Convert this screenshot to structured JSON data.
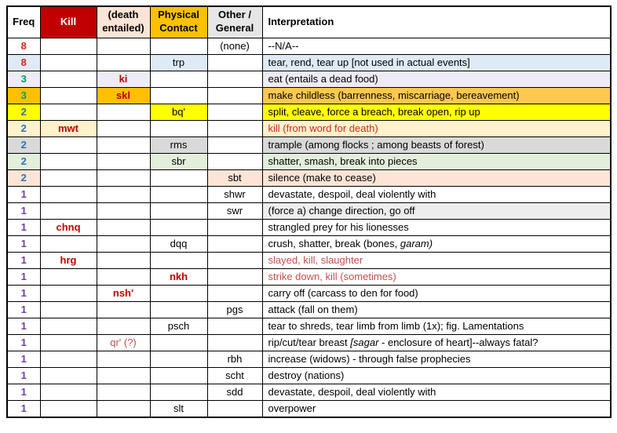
{
  "palette": {
    "header_kill_bg": "#C00000",
    "header_kill_text": "#FFFFFF",
    "header_death_bg": "#FCE4D6",
    "header_phys_bg": "#FFC000",
    "header_other_bg": "#E7E6E6",
    "freq_red": "#D6281A",
    "freq_green": "#00A45A",
    "freq_blue": "#2E75B6",
    "freq_purple": "#7040A8",
    "word_bold_red": "#C00000",
    "interp_bright_red": "#D02B20",
    "interp_brick_red": "#C0504D",
    "row_blue": "#DEEBF7",
    "row_lavender": "#EDEBF6",
    "row_gold": "#FFC000",
    "row_gold_light": "#FCC84E",
    "row_yellow": "#FFFF00",
    "row_cream": "#FFF2CC",
    "row_gray": "#D9D9D9",
    "row_green": "#E2EFDA",
    "row_peach": "#FCE4D6",
    "row_lightgray": "#EDEDED"
  },
  "table": {
    "headers": [
      {
        "key": "freq",
        "label": "Freq",
        "bg": "#FFFFFF",
        "color": "#000000"
      },
      {
        "key": "kill",
        "label": "Kill",
        "bg": "#C00000",
        "color": "#FFFFFF"
      },
      {
        "key": "death",
        "label": "(death entailed)",
        "bg": "#FCE4D6",
        "color": "#000000"
      },
      {
        "key": "phys",
        "label": "Physical Contact",
        "bg": "#FFC000",
        "color": "#000000"
      },
      {
        "key": "other",
        "label": "Other / General",
        "bg": "#E7E6E6",
        "color": "#000000"
      },
      {
        "key": "interp",
        "label": "Interpretation",
        "bg": "#FFFFFF",
        "color": "#000000"
      }
    ],
    "rows": [
      {
        "freq": "8",
        "freq_color": "#D6281A",
        "bg": "#FFFFFF",
        "col": "other",
        "word": "(none)",
        "word_color": "#000000",
        "word_bold": false,
        "interp": [
          {
            "t": "--N/A--",
            "i": false
          }
        ],
        "interp_color": "#000000",
        "interp_bg": null
      },
      {
        "freq": "8",
        "freq_color": "#D6281A",
        "bg": "#DEEBF7",
        "col": "phys",
        "word": "trp",
        "word_color": "#000000",
        "word_bold": false,
        "interp": [
          {
            "t": "tear, rend, tear up [not used in actual events]",
            "i": false
          }
        ],
        "interp_color": "#000000",
        "interp_bg": null
      },
      {
        "freq": "3",
        "freq_color": "#00A45A",
        "bg": "#EDEBF6",
        "col": "death",
        "word": "ki",
        "word_color": "#C00000",
        "word_bold": true,
        "interp": [
          {
            "t": "eat (entails a dead food)",
            "i": false
          }
        ],
        "interp_color": "#000000",
        "interp_bg": null
      },
      {
        "freq": "3",
        "freq_color": "#00A45A",
        "bg": "#FFC000",
        "col": "death",
        "word": "skl",
        "word_color": "#C00000",
        "word_bold": true,
        "interp": [
          {
            "t": "make childless (barrenness, miscarriage, bereavement)",
            "i": false
          }
        ],
        "interp_color": "#000000",
        "interp_bg": "#FCC84E"
      },
      {
        "freq": "2",
        "freq_color": "#2E75B6",
        "bg": "#FFFF00",
        "col": "phys",
        "word": "bq'",
        "word_color": "#000000",
        "word_bold": false,
        "interp": [
          {
            "t": "split, cleave, force a breach, break open, rip up",
            "i": false
          }
        ],
        "interp_color": "#000000",
        "interp_bg": null
      },
      {
        "freq": "2",
        "freq_color": "#2E75B6",
        "bg": "#FFF2CC",
        "col": "kill",
        "word": "mwt",
        "word_color": "#C00000",
        "word_bold": true,
        "interp": [
          {
            "t": "kill (from word for death)",
            "i": false
          }
        ],
        "interp_color": "#D02B20",
        "interp_bg": null
      },
      {
        "freq": "2",
        "freq_color": "#2E75B6",
        "bg": "#D9D9D9",
        "col": "phys",
        "word": "rms",
        "word_color": "#000000",
        "word_bold": false,
        "interp": [
          {
            "t": "trample (among flocks ; among beasts of forest)",
            "i": false
          }
        ],
        "interp_color": "#000000",
        "interp_bg": null
      },
      {
        "freq": "2",
        "freq_color": "#2E75B6",
        "bg": "#E2EFDA",
        "col": "phys",
        "word": "sbr",
        "word_color": "#000000",
        "word_bold": false,
        "interp": [
          {
            "t": "shatter, smash, break into pieces",
            "i": false
          }
        ],
        "interp_color": "#000000",
        "interp_bg": null
      },
      {
        "freq": "2",
        "freq_color": "#2E75B6",
        "bg": "#FCE4D6",
        "col": "other",
        "word": "sbt",
        "word_color": "#000000",
        "word_bold": false,
        "interp": [
          {
            "t": "silence (make to cease)",
            "i": false
          }
        ],
        "interp_color": "#000000",
        "interp_bg": null
      },
      {
        "freq": "1",
        "freq_color": "#7040A8",
        "bg": "#FFFFFF",
        "col": "other",
        "word": "shwr",
        "word_color": "#000000",
        "word_bold": false,
        "interp": [
          {
            "t": "devastate, despoil, deal violently with",
            "i": false
          }
        ],
        "interp_color": "#000000",
        "interp_bg": null
      },
      {
        "freq": "1",
        "freq_color": "#7040A8",
        "bg": "#FFFFFF",
        "col": "other",
        "word": "swr",
        "word_color": "#000000",
        "word_bold": false,
        "interp": [
          {
            "t": "(force a) change direction, go off",
            "i": false
          }
        ],
        "interp_color": "#000000",
        "interp_bg": "#EDEDED"
      },
      {
        "freq": "1",
        "freq_color": "#7040A8",
        "bg": "#FFFFFF",
        "col": "kill",
        "word": "chnq",
        "word_color": "#C00000",
        "word_bold": true,
        "interp": [
          {
            "t": "strangled prey for his lionesses",
            "i": false
          }
        ],
        "interp_color": "#000000",
        "interp_bg": null
      },
      {
        "freq": "1",
        "freq_color": "#7040A8",
        "bg": "#FFFFFF",
        "col": "phys",
        "word": "dqq",
        "word_color": "#000000",
        "word_bold": false,
        "interp": [
          {
            "t": "crush, shatter, break (bones, ",
            "i": false
          },
          {
            "t": "garam)",
            "i": true
          }
        ],
        "interp_color": "#000000",
        "interp_bg": null
      },
      {
        "freq": "1",
        "freq_color": "#7040A8",
        "bg": "#FFFFFF",
        "col": "kill",
        "word": "hrg",
        "word_color": "#C00000",
        "word_bold": true,
        "interp": [
          {
            "t": "slayed, kill, slaughter",
            "i": false
          }
        ],
        "interp_color": "#C0504D",
        "interp_bg": null
      },
      {
        "freq": "1",
        "freq_color": "#7040A8",
        "bg": "#FFFFFF",
        "col": "phys",
        "word": "nkh",
        "word_color": "#C00000",
        "word_bold": true,
        "interp": [
          {
            "t": "strike down, kill (sometimes)",
            "i": false
          }
        ],
        "interp_color": "#C0504D",
        "interp_bg": null
      },
      {
        "freq": "1",
        "freq_color": "#7040A8",
        "bg": "#FFFFFF",
        "col": "death",
        "word": "nsh'",
        "word_color": "#C00000",
        "word_bold": true,
        "interp": [
          {
            "t": "carry off (carcass to den for food)",
            "i": false
          }
        ],
        "interp_color": "#000000",
        "interp_bg": null
      },
      {
        "freq": "1",
        "freq_color": "#7040A8",
        "bg": "#FFFFFF",
        "col": "other",
        "word": "pgs",
        "word_color": "#000000",
        "word_bold": false,
        "interp": [
          {
            "t": "attack (fall on them)",
            "i": false
          }
        ],
        "interp_color": "#000000",
        "interp_bg": null
      },
      {
        "freq": "1",
        "freq_color": "#7040A8",
        "bg": "#FFFFFF",
        "col": "phys",
        "word": "psch",
        "word_color": "#000000",
        "word_bold": false,
        "interp": [
          {
            "t": "tear to shreds, tear limb from limb (1x); fig. Lamentations",
            "i": false
          }
        ],
        "interp_color": "#000000",
        "interp_bg": null
      },
      {
        "freq": "1",
        "freq_color": "#7040A8",
        "bg": "#FFFFFF",
        "col": "death",
        "word": "qr' (?)",
        "word_color": "#C0504D",
        "word_bold": false,
        "interp": [
          {
            "t": "rip/cut/tear breast ",
            "i": false
          },
          {
            "t": "[sagar ",
            "i": true
          },
          {
            "t": " - enclosure of heart]--always fatal?",
            "i": false
          }
        ],
        "interp_color": "#000000",
        "interp_bg": null
      },
      {
        "freq": "1",
        "freq_color": "#7040A8",
        "bg": "#FFFFFF",
        "col": "other",
        "word": "rbh",
        "word_color": "#000000",
        "word_bold": false,
        "interp": [
          {
            "t": "increase (widows) - through false prophecies",
            "i": false
          }
        ],
        "interp_color": "#000000",
        "interp_bg": null
      },
      {
        "freq": "1",
        "freq_color": "#7040A8",
        "bg": "#FFFFFF",
        "col": "other",
        "word": "scht",
        "word_color": "#000000",
        "word_bold": false,
        "interp": [
          {
            "t": "destroy (nations)",
            "i": false
          }
        ],
        "interp_color": "#000000",
        "interp_bg": null
      },
      {
        "freq": "1",
        "freq_color": "#7040A8",
        "bg": "#FFFFFF",
        "col": "other",
        "word": "sdd",
        "word_color": "#000000",
        "word_bold": false,
        "interp": [
          {
            "t": "devastate, despoil, deal violently with",
            "i": false
          }
        ],
        "interp_color": "#000000",
        "interp_bg": null
      },
      {
        "freq": "1",
        "freq_color": "#7040A8",
        "bg": "#FFFFFF",
        "col": "phys",
        "word": "slt",
        "word_color": "#000000",
        "word_bold": false,
        "interp": [
          {
            "t": "overpower",
            "i": false
          }
        ],
        "interp_color": "#000000",
        "interp_bg": null
      }
    ]
  }
}
